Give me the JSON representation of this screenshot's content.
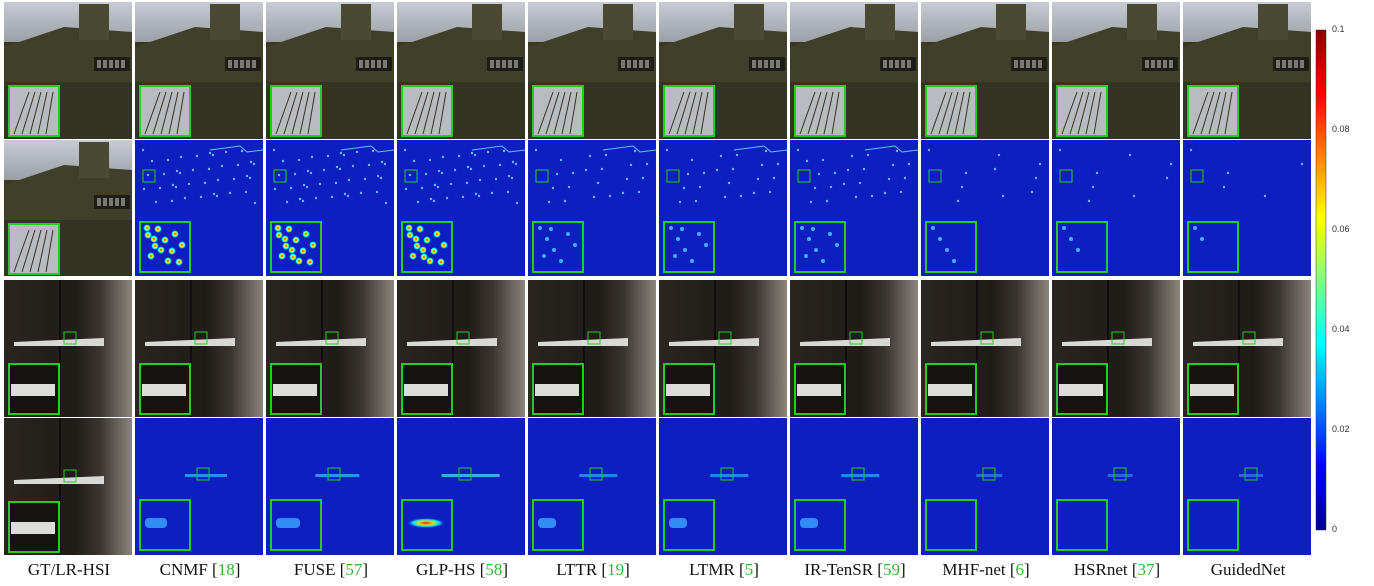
{
  "methods": [
    {
      "name": "GT/LR-HSI",
      "ref": ""
    },
    {
      "name": "CNMF",
      "ref": "18"
    },
    {
      "name": "FUSE",
      "ref": "57"
    },
    {
      "name": "GLP-HS",
      "ref": "58"
    },
    {
      "name": "LTTR",
      "ref": "19"
    },
    {
      "name": "LTMR",
      "ref": "5"
    },
    {
      "name": "IR-TenSR",
      "ref": "59"
    },
    {
      "name": "MHF-net",
      "ref": "6"
    },
    {
      "name": "HSRnet",
      "ref": "37"
    },
    {
      "name": "GuidedNet",
      "ref": ""
    }
  ],
  "error_levels_scene1": [
    0,
    0.95,
    1.0,
    1.0,
    0.55,
    0.55,
    0.6,
    0.25,
    0.2,
    0.12
  ],
  "error_levels_scene2": [
    0,
    0.55,
    0.6,
    0.95,
    0.45,
    0.45,
    0.45,
    0.15,
    0.12,
    0.1
  ],
  "colorbar": {
    "ticks": [
      "0.1",
      "0.08",
      "0.06",
      "0.04",
      "0.02",
      "0"
    ],
    "colors": [
      "#8b0000",
      "#ff0000",
      "#ff8000",
      "#ffff00",
      "#80ff80",
      "#00ffff",
      "#0080ff",
      "#0000ff",
      "#00008b"
    ]
  },
  "colors": {
    "error_bg": "#0d1fc0",
    "zoom_box": "#22cc22",
    "ref_text": "#2eb82e"
  }
}
